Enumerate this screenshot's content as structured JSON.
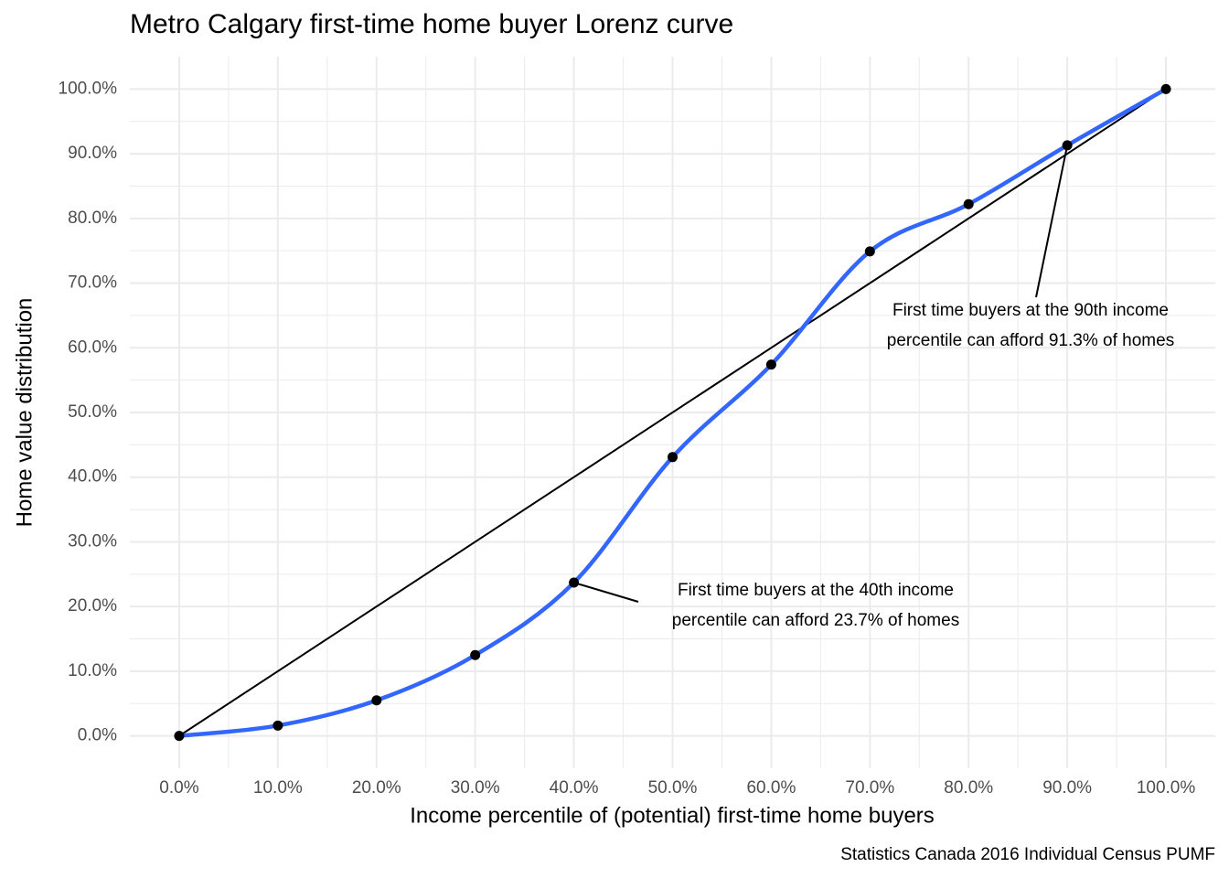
{
  "chart_data": {
    "type": "line",
    "title": "Metro Calgary first-time home buyer Lorenz curve",
    "x_label": "Income percentile of (potential) first-time home buyers",
    "y_label": "Home value distribution",
    "caption": "Statistics Canada 2016 Individual Census PUMF",
    "x": [
      0,
      10,
      20,
      30,
      40,
      50,
      60,
      70,
      80,
      90,
      100
    ],
    "series": [
      {
        "color": "#3366ff",
        "values": [
          0,
          1.6,
          5.5,
          12.5,
          23.7,
          43.1,
          57.4,
          74.9,
          82.2,
          91.3,
          100
        ]
      }
    ],
    "xlim": [
      -5,
      105
    ],
    "ylim": [
      -5,
      105
    ],
    "xticks": [
      {
        "value": 0,
        "label": "0.0%"
      },
      {
        "value": 10,
        "label": "10.0%"
      },
      {
        "value": 20,
        "label": "20.0%"
      },
      {
        "value": 30,
        "label": "30.0%"
      },
      {
        "value": 40,
        "label": "40.0%"
      },
      {
        "value": 50,
        "label": "50.0%"
      },
      {
        "value": 60,
        "label": "60.0%"
      },
      {
        "value": 70,
        "label": "70.0%"
      },
      {
        "value": 80,
        "label": "80.0%"
      },
      {
        "value": 90,
        "label": "90.0%"
      },
      {
        "value": 100,
        "label": "100.0%"
      }
    ],
    "yticks": [
      {
        "value": 0,
        "label": "0.0%"
      },
      {
        "value": 10,
        "label": "10.0%"
      },
      {
        "value": 20,
        "label": "20.0%"
      },
      {
        "value": 30,
        "label": "30.0%"
      },
      {
        "value": 40,
        "label": "40.0%"
      },
      {
        "value": 50,
        "label": "50.0%"
      },
      {
        "value": 60,
        "label": "60.0%"
      },
      {
        "value": 70,
        "label": "70.0%"
      },
      {
        "value": 80,
        "label": "80.0%"
      },
      {
        "value": 90,
        "label": "90.0%"
      },
      {
        "value": 100,
        "label": "100.0%"
      }
    ],
    "grid": true,
    "diagonal": true,
    "annotations": [
      {
        "lines": [
          "First time buyers at the 90th income",
          "percentile can afford 91.3% of homes"
        ]
      },
      {
        "lines": [
          "First time buyers at the 40th income",
          "percentile can afford 23.7% of homes"
        ]
      }
    ]
  }
}
